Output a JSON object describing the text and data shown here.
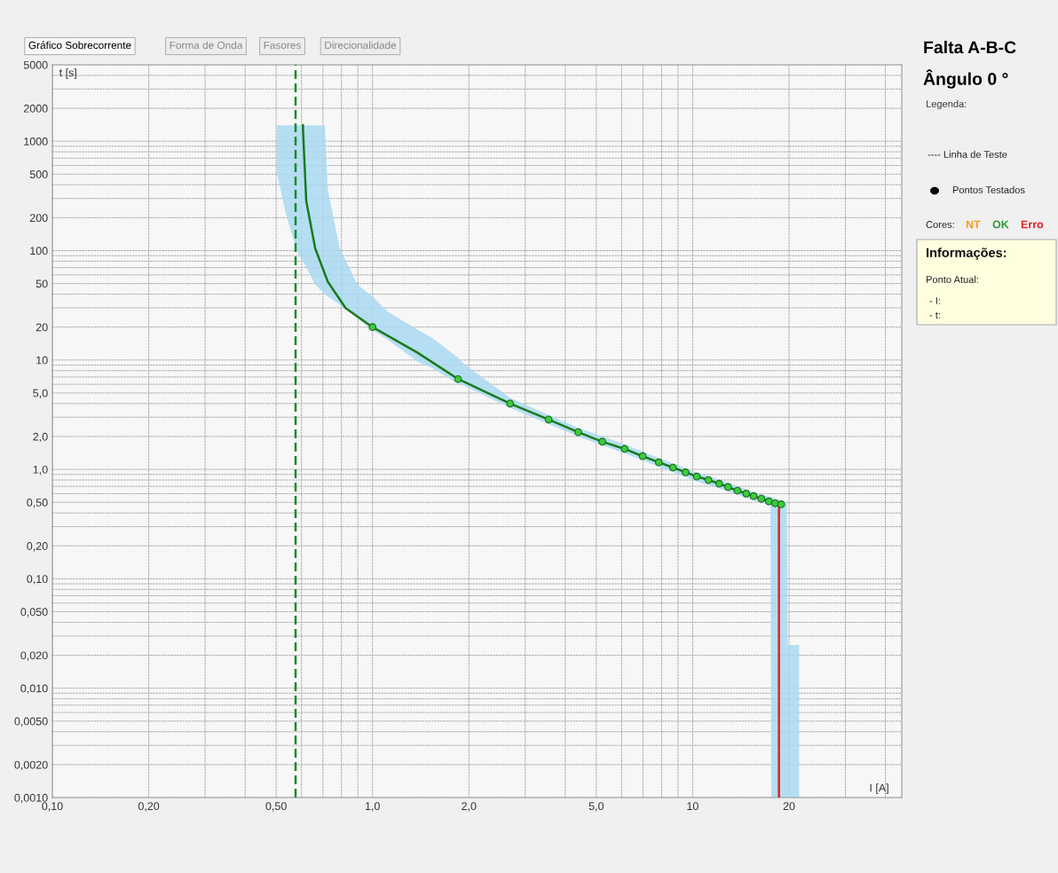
{
  "chart_data": {
    "type": "line",
    "title": "Falta A-B-C",
    "subtitle": "Ângulo 0 °",
    "xlabel": "I [A]",
    "ylabel": "t [s]",
    "log": "xy",
    "grid": true,
    "legend": false,
    "xlim": [
      0.1,
      45
    ],
    "ylim": [
      0.001,
      5000
    ],
    "xticks": [
      {
        "value": 0.1,
        "label": "0,10"
      },
      {
        "value": 0.2,
        "label": "0,20"
      },
      {
        "value": 0.5,
        "label": "0,50"
      },
      {
        "value": 1,
        "label": "1,0"
      },
      {
        "value": 2,
        "label": "2,0"
      },
      {
        "value": 5,
        "label": "5,0"
      },
      10,
      20
    ],
    "yticks": [
      {
        "value": 0.001,
        "label": "0,0010"
      },
      {
        "value": 0.002,
        "label": "0,0020"
      },
      {
        "value": 0.005,
        "label": "0,0050"
      },
      {
        "value": 0.01,
        "label": "0,010"
      },
      {
        "value": 0.02,
        "label": "0,020"
      },
      {
        "value": 0.05,
        "label": "0,050"
      },
      {
        "value": 0.1,
        "label": "0,10"
      },
      {
        "value": 0.2,
        "label": "0,20"
      },
      {
        "value": 0.5,
        "label": "0,50"
      },
      {
        "value": 1,
        "label": "1,0"
      },
      {
        "value": 2,
        "label": "2,0"
      },
      {
        "value": 5,
        "label": "5,0"
      },
      10,
      20,
      50,
      100,
      200,
      500,
      1000,
      2000,
      5000
    ],
    "series": [
      {
        "type": "area",
        "color": "#a9d9f2",
        "x": [
          0.502,
          0.535,
          0.582,
          0.621,
          0.662,
          0.71,
          0.725,
          0.79,
          0.897,
          1.0,
          1.11,
          1.38,
          1.53,
          1.85,
          1.94,
          2.69,
          3.55,
          4.39,
          6.13,
          7.84,
          10.3,
          12.9,
          15.5,
          17.5,
          17.6,
          19.7,
          19.8,
          21.5
        ],
        "values": [
          null,
          null,
          null,
          null,
          null,
          null,
          null,
          null,
          null,
          null,
          null,
          null,
          null,
          null,
          null,
          null,
          null,
          null,
          null,
          null,
          null,
          null,
          null,
          null,
          null,
          null,
          null,
          null
        ],
        "lower": [
          526,
          222,
          97,
          70,
          49,
          40,
          38,
          32,
          24,
          18.7,
          15.5,
          9.7,
          8.5,
          6.05,
          5.8,
          3.65,
          2.6,
          2.0,
          1.4,
          1.06,
          0.78,
          0.63,
          0.52,
          0.47,
          0.001,
          0.001,
          0.001,
          0.001
        ],
        "upper": [
          1400,
          1400,
          1400,
          1400,
          1400,
          1400,
          361,
          105,
          49,
          38,
          28,
          19,
          16,
          10.5,
          9.1,
          4.5,
          3.15,
          2.4,
          1.7,
          1.27,
          0.94,
          0.76,
          0.62,
          0.56,
          0.56,
          0.5,
          0.0248,
          0.0248
        ]
      },
      {
        "color": "#1a7a1a",
        "x": [
          0.606,
          0.61,
          0.621,
          0.662,
          0.725,
          0.824,
          1.0,
          1.38,
          1.85,
          2.69,
          3.55,
          4.39,
          5.22,
          6.13,
          6.98,
          7.84,
          8.68,
          9.5,
          10.3,
          11.2,
          12.1,
          12.9,
          13.8,
          14.7,
          15.5,
          16.4,
          17.3,
          18.1,
          18.9
        ],
        "values": [
          1400,
          873,
          283,
          105,
          52,
          29.8,
          20,
          11.7,
          6.7,
          4.0,
          2.86,
          2.19,
          1.79,
          1.54,
          1.32,
          1.16,
          1.04,
          0.94,
          0.86,
          0.8,
          0.74,
          0.69,
          0.64,
          0.6,
          0.57,
          0.54,
          0.51,
          0.49,
          0.48
        ]
      },
      {
        "type": "scatter",
        "color": "#3ccc3c",
        "marker": "circle",
        "x": [
          1.0,
          1.85,
          2.69,
          3.55,
          4.39,
          5.22,
          6.13,
          6.98,
          7.84,
          8.68,
          9.5,
          10.3,
          11.2,
          12.1,
          12.9,
          13.8,
          14.7,
          15.5,
          16.4,
          17.3,
          18.1,
          18.9
        ],
        "values": [
          20,
          6.7,
          4.0,
          2.86,
          2.19,
          1.79,
          1.54,
          1.32,
          1.16,
          1.04,
          0.94,
          0.86,
          0.8,
          0.74,
          0.69,
          0.64,
          0.6,
          0.57,
          0.54,
          0.51,
          0.49,
          0.48
        ]
      },
      {
        "type": "line",
        "color": "#e02020",
        "x": [
          18.6,
          18.6
        ],
        "values": [
          0.48,
          0.001
        ]
      }
    ],
    "ref_lines": [
      {
        "axis": "x",
        "value": 0.575,
        "color": "#1a8a2a",
        "line_style": "dashed"
      }
    ],
    "annotations": [
      "Gráfico Sobrecorrente",
      "Forma de Onda",
      "Fasores",
      "Direcionalidade",
      "Legenda:",
      "---- Linha de Teste",
      "Pontos Testados",
      "Cores:",
      "NT",
      "OK",
      "Erro",
      "Informações:",
      "Ponto Atual:",
      "- I:",
      "- t:"
    ]
  }
}
